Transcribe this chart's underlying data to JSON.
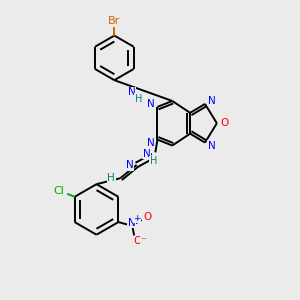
{
  "bg_color": "#ebebeb",
  "bond_color": "#000000",
  "bond_width": 1.4,
  "colors": {
    "N": "#0000ff",
    "O": "#ff0000",
    "Br": "#cc6600",
    "Cl": "#00aa00",
    "H": "#008080",
    "C": "#000000"
  },
  "fig_width": 3.0,
  "fig_height": 3.0,
  "dpi": 100
}
